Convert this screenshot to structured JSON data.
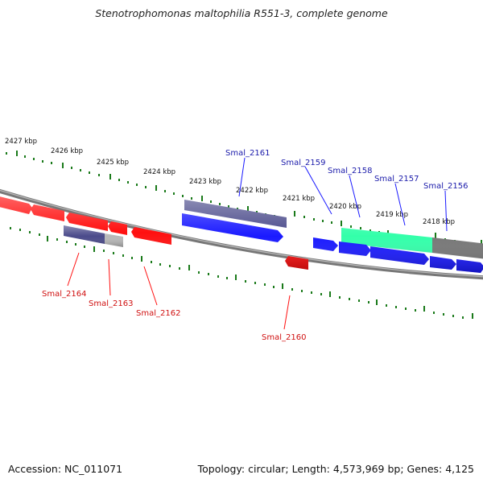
{
  "title": "Stenotrophomonas maltophilia R551-3, complete genome",
  "footer": {
    "accession": "Accession: NC_011071",
    "topology": "Topology: circular; Length: 4,573,969 bp; Genes: 4,125"
  },
  "ruler_labels": [
    "2427 kbp",
    "2426 kbp",
    "2425 kbp",
    "2424 kbp",
    "2423 kbp",
    "2422 kbp",
    "2421 kbp",
    "2420 kbp",
    "2419 kbp",
    "2418 kbp"
  ],
  "forward_genes": [
    "Smal_2161",
    "Smal_2159",
    "Smal_2158",
    "Smal_2157",
    "Smal_2156"
  ],
  "reverse_genes": [
    "Smal_2164",
    "Smal_2163",
    "Smal_2162",
    "Smal_2160"
  ],
  "colors": {
    "forward_cds": "#1a1aff",
    "reverse_cds": "#ff1010",
    "forward_label": "#1a1aaa",
    "reverse_label": "#d01010",
    "gene_dark": "#4a4a8a",
    "rna_highlight": "#33ffaa",
    "grey_feature": "#777777",
    "tick": "#1a7a1a",
    "backbone": "#777777"
  }
}
